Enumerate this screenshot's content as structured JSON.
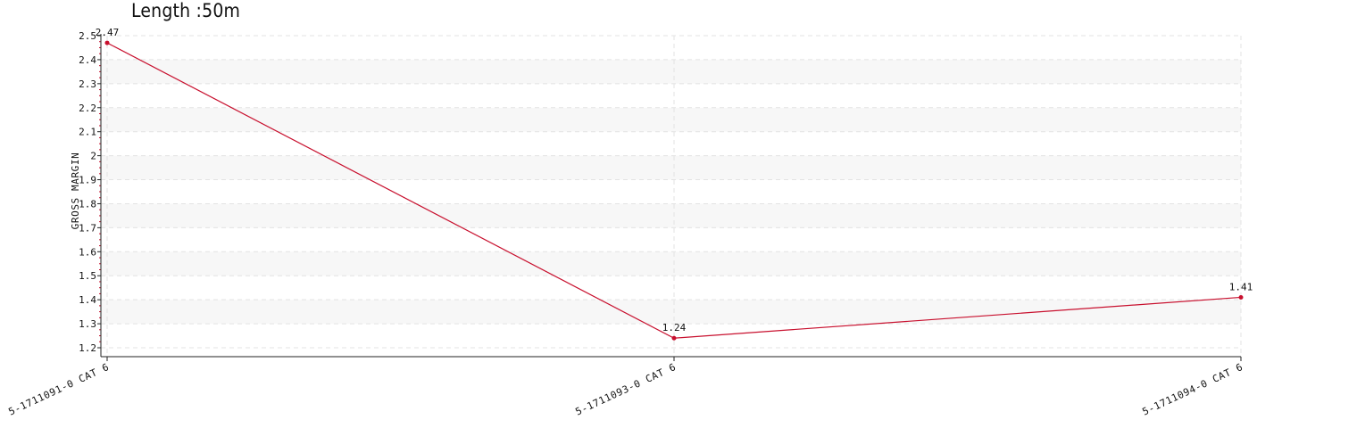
{
  "chart_data": {
    "type": "line",
    "title": "Length :50m",
    "xlabel": "",
    "ylabel": "GROSS MARGIN",
    "categories": [
      "5-1711091-0 CAT 6",
      "5-1711093-0 CAT 6",
      "5-1711094-0 CAT 6"
    ],
    "series": [
      {
        "values": [
          2.47,
          1.24,
          1.41
        ],
        "data_labels": [
          "2.47",
          "1.24",
          "1.41"
        ],
        "color": "#c8102e"
      }
    ],
    "yticks": [
      "1.2",
      "1.3",
      "1.4",
      "1.5",
      "1.6",
      "1.7",
      "1.8",
      "1.9",
      "2",
      "2.1",
      "2.2",
      "2.3",
      "2.4",
      "2.5"
    ],
    "ylim": [
      1.2,
      2.5
    ],
    "grid": true,
    "band_colors": [
      "#f7f7f7",
      "#ffffff"
    ],
    "grid_color": "#e3e3e3",
    "axis_color": "#222222"
  }
}
